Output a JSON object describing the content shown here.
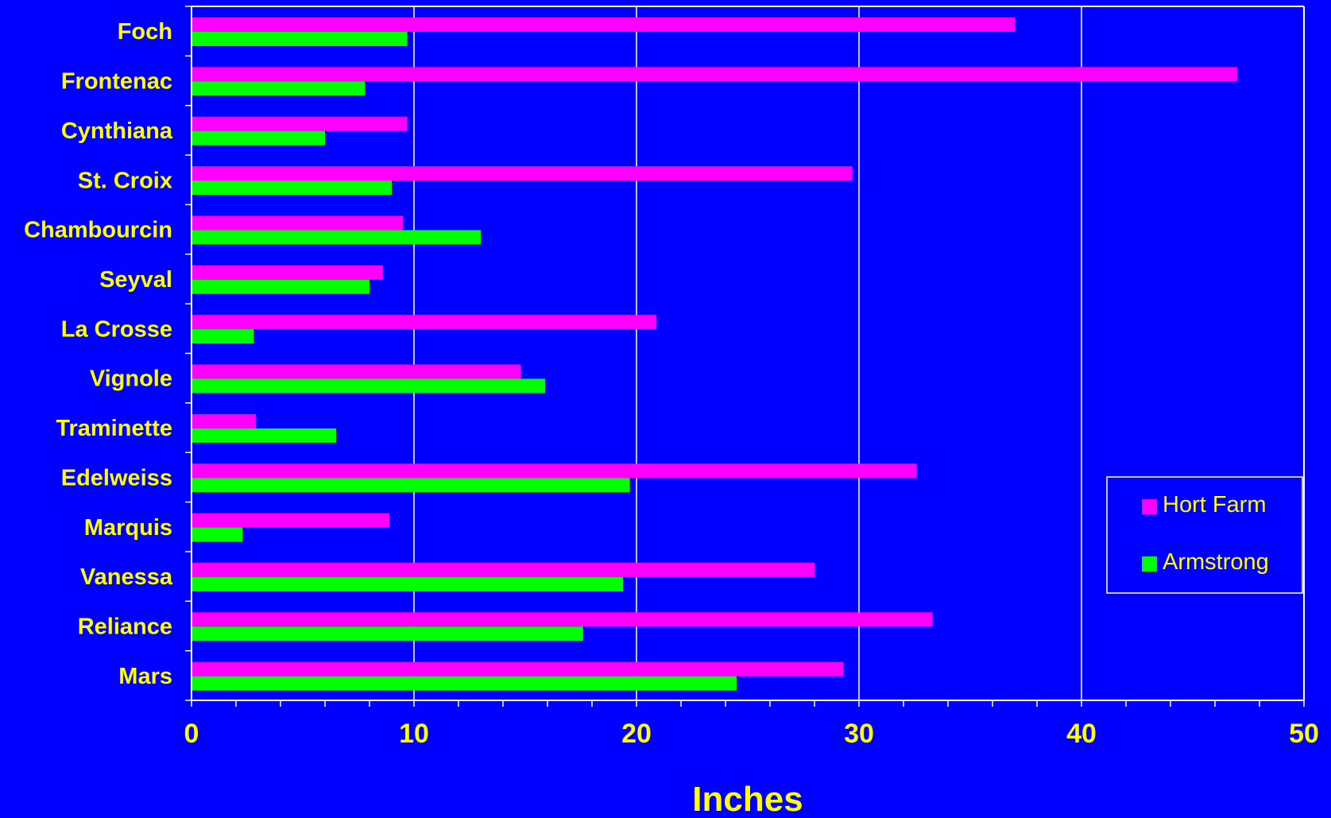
{
  "chart_data": {
    "type": "bar",
    "orientation": "horizontal",
    "categories": [
      "Foch",
      "Frontenac",
      "Cynthiana",
      "St. Croix",
      "Chambourcin",
      "Seyval",
      "La Crosse",
      "Vignole",
      "Traminette",
      "Edelweiss",
      "Marquis",
      "Vanessa",
      "Reliance",
      "Mars"
    ],
    "series": [
      {
        "name": "Hort Farm",
        "color": "#ff00ff",
        "values": [
          37.0,
          47.0,
          9.7,
          29.7,
          9.5,
          8.6,
          20.9,
          14.8,
          2.9,
          32.6,
          8.9,
          28.0,
          33.3,
          29.3
        ]
      },
      {
        "name": "Armstrong",
        "color": "#00ff00",
        "values": [
          9.7,
          7.8,
          6.0,
          9.0,
          13.0,
          8.0,
          2.8,
          15.9,
          6.5,
          19.7,
          2.3,
          19.4,
          17.6,
          24.5
        ]
      }
    ],
    "xlabel": "Inches",
    "xlim": [
      0,
      50
    ],
    "xticks": [
      "0",
      "10",
      "20",
      "30",
      "40",
      "50"
    ],
    "grid": true,
    "legend_position": "right",
    "colors": {
      "background": "#0000ff",
      "text": "#ffff00",
      "axis": "#ffffff"
    }
  }
}
